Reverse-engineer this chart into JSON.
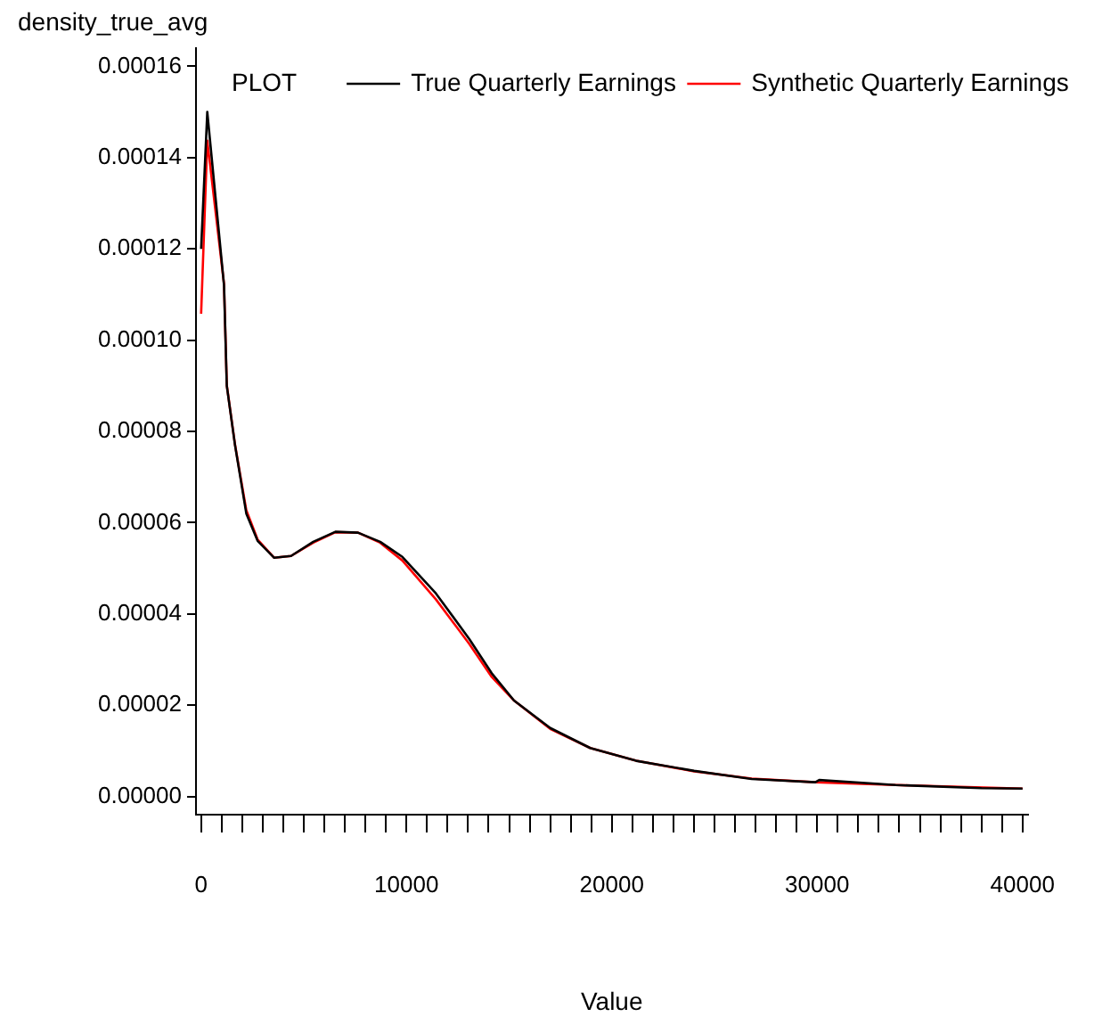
{
  "chart_data": {
    "type": "line",
    "ylabel": "density_true_avg",
    "xlabel": "Value",
    "legend_title": "PLOT",
    "legend": "top",
    "grid": false,
    "marker": "none",
    "line_style": "solid",
    "xlim": [
      -250,
      40250
    ],
    "ylim": [
      -4e-06,
      0.000164
    ],
    "xticks": [
      0,
      {
        "value": 1000,
        "label": null
      },
      {
        "value": 2000,
        "label": null
      },
      {
        "value": 3000,
        "label": null
      },
      {
        "value": 4000,
        "label": null
      },
      {
        "value": 5000,
        "label": null
      },
      {
        "value": 6000,
        "label": null
      },
      {
        "value": 7000,
        "label": null
      },
      {
        "value": 8000,
        "label": null
      },
      {
        "value": 9000,
        "label": null
      },
      10000,
      {
        "value": 11000,
        "label": null
      },
      {
        "value": 12000,
        "label": null
      },
      {
        "value": 13000,
        "label": null
      },
      {
        "value": 14000,
        "label": null
      },
      {
        "value": 15000,
        "label": null
      },
      {
        "value": 16000,
        "label": null
      },
      {
        "value": 17000,
        "label": null
      },
      {
        "value": 18000,
        "label": null
      },
      {
        "value": 19000,
        "label": null
      },
      20000,
      {
        "value": 21000,
        "label": null
      },
      {
        "value": 22000,
        "label": null
      },
      {
        "value": 23000,
        "label": null
      },
      {
        "value": 24000,
        "label": null
      },
      {
        "value": 25000,
        "label": null
      },
      {
        "value": 26000,
        "label": null
      },
      {
        "value": 27000,
        "label": null
      },
      {
        "value": 28000,
        "label": null
      },
      {
        "value": 29000,
        "label": null
      },
      30000,
      {
        "value": 31000,
        "label": null
      },
      {
        "value": 32000,
        "label": null
      },
      {
        "value": 33000,
        "label": null
      },
      {
        "value": 34000,
        "label": null
      },
      {
        "value": 35000,
        "label": null
      },
      {
        "value": 36000,
        "label": null
      },
      {
        "value": 37000,
        "label": null
      },
      {
        "value": 38000,
        "label": null
      },
      {
        "value": 39000,
        "label": null
      },
      40000
    ],
    "yticks": [
      {
        "value": 0,
        "label": "0.00000"
      },
      {
        "value": 2e-05,
        "label": "0.00002"
      },
      {
        "value": 4e-05,
        "label": "0.00004"
      },
      {
        "value": 6e-05,
        "label": "0.00006"
      },
      {
        "value": 8e-05,
        "label": "0.00008"
      },
      {
        "value": 0.0001,
        "label": "0.00010"
      },
      {
        "value": 0.00012,
        "label": "0.00012"
      },
      {
        "value": 0.00014,
        "label": "0.00014"
      },
      {
        "value": 0.00016,
        "label": "0.00016"
      }
    ],
    "series": [
      {
        "name": "True Quarterly Earnings",
        "color": "#000000",
        "x": [
          0,
          300,
          1115,
          1250,
          1650,
          2200,
          2750,
          3560,
          4380,
          5460,
          6540,
          7640,
          8720,
          9800,
          11430,
          13060,
          14150,
          15240,
          17000,
          18950,
          21190,
          24010,
          26810,
          29910,
          30100,
          33820,
          38000,
          40000
        ],
        "values": [
          0.00012,
          0.00015,
          0.000112,
          9e-05,
          7.7e-05,
          6.2e-05,
          5.6e-05,
          5.23e-05,
          5.27e-05,
          5.58e-05,
          5.8e-05,
          5.78e-05,
          5.58e-05,
          5.25e-05,
          4.45e-05,
          3.45e-05,
          2.7e-05,
          2.1e-05,
          1.5e-05,
          1.06e-05,
          7.8e-06,
          5.6e-06,
          3.8e-06,
          3.1e-06,
          3.6e-06,
          2.5e-06,
          1.8e-06,
          1.7e-06
        ]
      },
      {
        "name": "Synthetic Quarterly Earnings",
        "color": "#ff0000",
        "x": [
          0,
          300,
          1115,
          1250,
          1650,
          2200,
          2750,
          3560,
          4380,
          5460,
          6540,
          7640,
          8720,
          9800,
          11430,
          13060,
          14150,
          15240,
          17000,
          18950,
          21190,
          24010,
          26810,
          29910,
          33820,
          40000
        ],
        "values": [
          0.0001058,
          0.0001437,
          0.0001123,
          9.01e-05,
          7.71e-05,
          6.27e-05,
          5.63e-05,
          5.23e-05,
          5.27e-05,
          5.56e-05,
          5.79e-05,
          5.78e-05,
          5.56e-05,
          5.17e-05,
          4.32e-05,
          3.34e-05,
          2.62e-05,
          2.1e-05,
          1.48e-05,
          1.06e-05,
          7.8e-06,
          5.5e-06,
          3.9e-06,
          3.1e-06,
          2.5e-06,
          1.7e-06
        ]
      }
    ]
  }
}
